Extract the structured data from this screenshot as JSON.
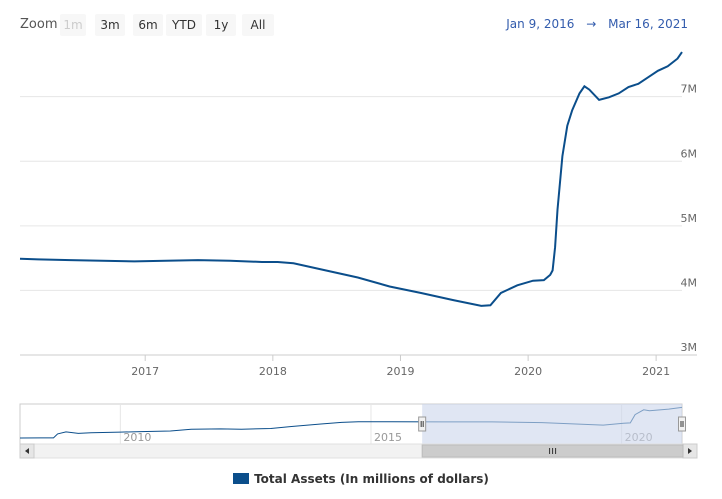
{
  "toolbar": {
    "zoom_label": "Zoom",
    "buttons": [
      {
        "label": "1m",
        "disabled": true
      },
      {
        "label": "3m",
        "disabled": false
      },
      {
        "label": "6m",
        "disabled": false
      },
      {
        "label": "YTD",
        "disabled": false
      },
      {
        "label": "1y",
        "disabled": false
      },
      {
        "label": "All",
        "disabled": false
      }
    ],
    "range_from": "Jan 9, 2016",
    "range_sep": "→",
    "range_to": "Mar 16, 2021"
  },
  "colors": {
    "series": "#0b4e8b",
    "navigator_mask": "#ccd6eb",
    "grid": "#e6e6e6"
  },
  "chart_data": {
    "type": "line",
    "title": "",
    "xlabel": "",
    "ylabel": "",
    "xlim": [
      "2016-01-09",
      "2021-03-16"
    ],
    "ylim": [
      3000000,
      7800000
    ],
    "yticks": [
      {
        "value": 3000000,
        "label": "3M"
      },
      {
        "value": 4000000,
        "label": "4M"
      },
      {
        "value": 5000000,
        "label": "5M"
      },
      {
        "value": 6000000,
        "label": "6M"
      },
      {
        "value": 7000000,
        "label": "7M"
      }
    ],
    "xticks": [
      "2017",
      "2018",
      "2019",
      "2020",
      "2021"
    ],
    "series": [
      {
        "name": "Total Assets (In millions of dollars)",
        "x": [
          "2016-01-09",
          "2016-03-01",
          "2016-06-01",
          "2016-09-01",
          "2016-12-01",
          "2017-03-01",
          "2017-06-01",
          "2017-09-01",
          "2017-12-01",
          "2018-01-15",
          "2018-03-01",
          "2018-06-01",
          "2018-09-01",
          "2018-12-01",
          "2019-03-01",
          "2019-06-01",
          "2019-08-20",
          "2019-09-15",
          "2019-10-15",
          "2019-12-01",
          "2020-01-15",
          "2020-02-15",
          "2020-03-04",
          "2020-03-11",
          "2020-03-18",
          "2020-03-25",
          "2020-04-08",
          "2020-04-22",
          "2020-05-06",
          "2020-05-27",
          "2020-06-10",
          "2020-06-24",
          "2020-07-22",
          "2020-08-19",
          "2020-09-16",
          "2020-10-14",
          "2020-11-11",
          "2020-12-09",
          "2021-01-06",
          "2021-02-03",
          "2021-03-03",
          "2021-03-16"
        ],
        "values": [
          4490000,
          4480000,
          4470000,
          4460000,
          4450000,
          4460000,
          4470000,
          4460000,
          4440000,
          4440000,
          4420000,
          4310000,
          4200000,
          4060000,
          3960000,
          3850000,
          3760000,
          3770000,
          3960000,
          4080000,
          4150000,
          4160000,
          4240000,
          4310000,
          4670000,
          5250000,
          6080000,
          6550000,
          6790000,
          7050000,
          7160000,
          7110000,
          6950000,
          6990000,
          7050000,
          7150000,
          7200000,
          7300000,
          7400000,
          7470000,
          7590000,
          7690000
        ]
      }
    ]
  },
  "navigator": {
    "xticks": [
      "2010",
      "2015",
      "2020"
    ],
    "start": "2008-01-01",
    "end": "2021-03-16",
    "selected_from": "2016-01-09",
    "selected_to": "2021-03-16",
    "series": {
      "x": [
        "2008-01-01",
        "2008-06-01",
        "2008-09-01",
        "2008-10-01",
        "2008-12-01",
        "2009-03-01",
        "2009-06-01",
        "2010-01-01",
        "2010-06-01",
        "2011-01-01",
        "2011-06-01",
        "2012-01-01",
        "2012-06-01",
        "2013-01-01",
        "2013-06-01",
        "2014-01-01",
        "2014-06-01",
        "2014-10-01",
        "2015-06-01",
        "2016-06-01",
        "2017-06-01",
        "2018-06-01",
        "2019-08-20",
        "2020-01-15",
        "2020-03-04",
        "2020-04-08",
        "2020-06-10",
        "2020-07-22",
        "2020-12-09",
        "2021-03-16"
      ],
      "values": [
        890000,
        900000,
        910000,
        1800000,
        2250000,
        1900000,
        2050000,
        2200000,
        2300000,
        2450000,
        2850000,
        2900000,
        2850000,
        3000000,
        3450000,
        4000000,
        4350000,
        4480000,
        4490000,
        4460000,
        4470000,
        4310000,
        3760000,
        4150000,
        4240000,
        6080000,
        7160000,
        6950000,
        7300000,
        7690000
      ]
    }
  },
  "legend": {
    "label": "Total Assets (In millions of dollars)"
  }
}
